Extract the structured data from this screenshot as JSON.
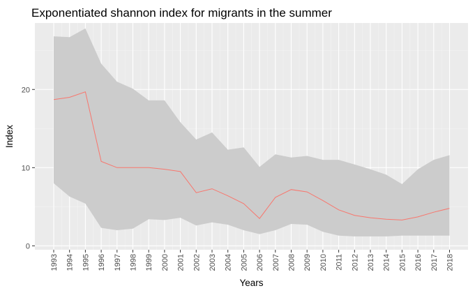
{
  "chart_data": {
    "type": "line",
    "title": "Exponentiated shannon index for migrants in the summer",
    "xlabel": "Years",
    "ylabel": "Index",
    "x": [
      "1993",
      "1994",
      "1995",
      "1996",
      "1997",
      "1998",
      "1999",
      "2000",
      "2001",
      "2002",
      "2003",
      "2004",
      "2005",
      "2006",
      "2007",
      "2008",
      "2009",
      "2010",
      "2011",
      "2012",
      "2013",
      "2014",
      "2015",
      "2016",
      "2017",
      "2018"
    ],
    "y_ticks": [
      0,
      10,
      20
    ],
    "ylim": [
      -0.5,
      28.5
    ],
    "grid": true,
    "legend": "none",
    "series": [
      {
        "values": [
          18.7,
          19.0,
          19.7,
          10.8,
          10.0,
          10.0,
          10.0,
          9.8,
          9.5,
          6.8,
          7.3,
          6.4,
          5.4,
          3.5,
          6.2,
          7.2,
          6.9,
          5.8,
          4.6,
          3.9,
          3.6,
          3.4,
          3.3,
          3.7,
          4.3,
          4.8
        ],
        "color": "#f8766d",
        "ribbon_lower": [
          8.0,
          6.3,
          5.4,
          2.3,
          2.0,
          2.2,
          3.4,
          3.3,
          3.6,
          2.6,
          3.0,
          2.7,
          2.0,
          1.5,
          2.0,
          2.8,
          2.7,
          1.8,
          1.3,
          1.2,
          1.2,
          1.2,
          1.3,
          1.3,
          1.3,
          1.3
        ],
        "ribbon_upper": [
          26.8,
          26.7,
          27.8,
          23.3,
          21.0,
          20.1,
          18.6,
          18.6,
          15.8,
          13.6,
          14.5,
          12.3,
          12.6,
          10.1,
          11.7,
          11.3,
          11.5,
          11.0,
          11.0,
          10.4,
          9.8,
          9.1,
          7.9,
          9.8,
          11.0,
          11.6
        ],
        "ribbon_color": "#cccccc"
      }
    ],
    "colors": {
      "panel_background": "#ebebeb",
      "grid_major": "#ffffff",
      "grid_minor": "#f3f3f3"
    }
  }
}
